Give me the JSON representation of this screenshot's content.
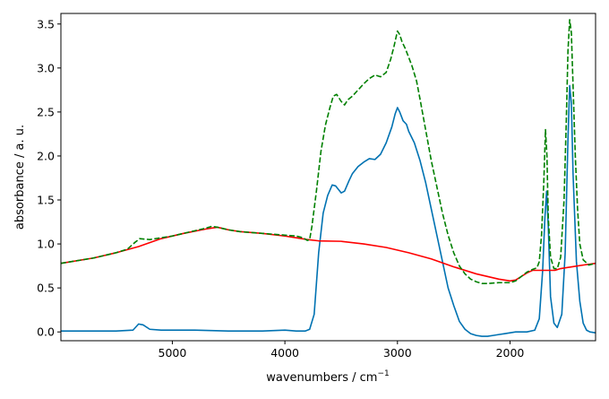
{
  "chart_data": {
    "type": "line",
    "title": "",
    "xlabel": "wavenumbers / cm",
    "xlabel_superscript": "−1",
    "ylabel": "absorbance / a. u.",
    "xlim": [
      5990,
      1240
    ],
    "x_reversed": true,
    "ylim": [
      -0.1,
      3.62
    ],
    "grid": false,
    "legend": "none",
    "x_ticks": [
      5000,
      4000,
      3000,
      2000
    ],
    "x_tick_labels": [
      "5000",
      "4000",
      "3000",
      "2000"
    ],
    "y_ticks": [
      0.0,
      0.5,
      1.0,
      1.5,
      2.0,
      2.5,
      3.0,
      3.5
    ],
    "y_tick_labels": [
      "0.0",
      "0.5",
      "1.0",
      "1.5",
      "2.0",
      "2.5",
      "3.0",
      "3.5"
    ],
    "series": [
      {
        "color": "#0072b2",
        "dash": "solid",
        "points": [
          [
            5990,
            0.01
          ],
          [
            5500,
            0.01
          ],
          [
            5350,
            0.02
          ],
          [
            5300,
            0.09
          ],
          [
            5260,
            0.08
          ],
          [
            5200,
            0.03
          ],
          [
            5100,
            0.02
          ],
          [
            4800,
            0.02
          ],
          [
            4500,
            0.01
          ],
          [
            4200,
            0.01
          ],
          [
            4000,
            0.02
          ],
          [
            3900,
            0.01
          ],
          [
            3820,
            0.01
          ],
          [
            3780,
            0.03
          ],
          [
            3740,
            0.2
          ],
          [
            3700,
            0.9
          ],
          [
            3660,
            1.35
          ],
          [
            3620,
            1.55
          ],
          [
            3580,
            1.67
          ],
          [
            3550,
            1.66
          ],
          [
            3500,
            1.58
          ],
          [
            3470,
            1.6
          ],
          [
            3430,
            1.72
          ],
          [
            3400,
            1.8
          ],
          [
            3350,
            1.88
          ],
          [
            3300,
            1.93
          ],
          [
            3250,
            1.97
          ],
          [
            3200,
            1.96
          ],
          [
            3150,
            2.02
          ],
          [
            3100,
            2.15
          ],
          [
            3050,
            2.33
          ],
          [
            3020,
            2.48
          ],
          [
            3000,
            2.55
          ],
          [
            2980,
            2.5
          ],
          [
            2950,
            2.4
          ],
          [
            2920,
            2.36
          ],
          [
            2900,
            2.28
          ],
          [
            2850,
            2.15
          ],
          [
            2800,
            1.95
          ],
          [
            2750,
            1.7
          ],
          [
            2700,
            1.4
          ],
          [
            2650,
            1.1
          ],
          [
            2600,
            0.8
          ],
          [
            2550,
            0.5
          ],
          [
            2500,
            0.3
          ],
          [
            2450,
            0.12
          ],
          [
            2400,
            0.03
          ],
          [
            2350,
            -0.02
          ],
          [
            2300,
            -0.04
          ],
          [
            2250,
            -0.05
          ],
          [
            2200,
            -0.05
          ],
          [
            2150,
            -0.04
          ],
          [
            2100,
            -0.03
          ],
          [
            2050,
            -0.02
          ],
          [
            2000,
            -0.01
          ],
          [
            1950,
            0.0
          ],
          [
            1850,
            0.0
          ],
          [
            1780,
            0.02
          ],
          [
            1740,
            0.15
          ],
          [
            1710,
            0.7
          ],
          [
            1690,
            1.3
          ],
          [
            1675,
            1.6
          ],
          [
            1660,
            1.2
          ],
          [
            1640,
            0.4
          ],
          [
            1610,
            0.1
          ],
          [
            1580,
            0.05
          ],
          [
            1540,
            0.2
          ],
          [
            1510,
            0.9
          ],
          [
            1485,
            2.2
          ],
          [
            1470,
            2.8
          ],
          [
            1455,
            2.6
          ],
          [
            1440,
            1.8
          ],
          [
            1410,
            0.8
          ],
          [
            1380,
            0.35
          ],
          [
            1350,
            0.1
          ],
          [
            1320,
            0.02
          ],
          [
            1290,
            0.0
          ],
          [
            1240,
            -0.01
          ]
        ]
      },
      {
        "color": "#ff0000",
        "dash": "solid",
        "points": [
          [
            5990,
            0.78
          ],
          [
            5700,
            0.84
          ],
          [
            5500,
            0.9
          ],
          [
            5300,
            0.97
          ],
          [
            5100,
            1.06
          ],
          [
            4900,
            1.12
          ],
          [
            4700,
            1.17
          ],
          [
            4600,
            1.19
          ],
          [
            4500,
            1.16
          ],
          [
            4400,
            1.14
          ],
          [
            4200,
            1.12
          ],
          [
            4000,
            1.09
          ],
          [
            3900,
            1.07
          ],
          [
            3800,
            1.05
          ],
          [
            3700,
            1.035
          ],
          [
            3500,
            1.03
          ],
          [
            3300,
            1.0
          ],
          [
            3100,
            0.96
          ],
          [
            2900,
            0.9
          ],
          [
            2700,
            0.83
          ],
          [
            2500,
            0.74
          ],
          [
            2300,
            0.66
          ],
          [
            2100,
            0.6
          ],
          [
            2000,
            0.58
          ],
          [
            1950,
            0.59
          ],
          [
            1900,
            0.63
          ],
          [
            1850,
            0.67
          ],
          [
            1800,
            0.7
          ],
          [
            1700,
            0.7
          ],
          [
            1600,
            0.7
          ],
          [
            1550,
            0.72
          ],
          [
            1450,
            0.74
          ],
          [
            1350,
            0.76
          ],
          [
            1240,
            0.78
          ]
        ]
      },
      {
        "color": "#008000",
        "dash": "dashed",
        "points": [
          [
            5990,
            0.78
          ],
          [
            5700,
            0.84
          ],
          [
            5500,
            0.9
          ],
          [
            5400,
            0.94
          ],
          [
            5330,
            1.02
          ],
          [
            5290,
            1.06
          ],
          [
            5200,
            1.05
          ],
          [
            5100,
            1.07
          ],
          [
            5000,
            1.09
          ],
          [
            4900,
            1.12
          ],
          [
            4800,
            1.15
          ],
          [
            4700,
            1.18
          ],
          [
            4650,
            1.2
          ],
          [
            4600,
            1.19
          ],
          [
            4500,
            1.16
          ],
          [
            4400,
            1.14
          ],
          [
            4200,
            1.12
          ],
          [
            4000,
            1.1
          ],
          [
            3900,
            1.09
          ],
          [
            3840,
            1.07
          ],
          [
            3800,
            1.04
          ],
          [
            3780,
            1.05
          ],
          [
            3760,
            1.2
          ],
          [
            3720,
            1.6
          ],
          [
            3680,
            2.05
          ],
          [
            3640,
            2.35
          ],
          [
            3600,
            2.55
          ],
          [
            3570,
            2.68
          ],
          [
            3540,
            2.7
          ],
          [
            3500,
            2.62
          ],
          [
            3470,
            2.58
          ],
          [
            3440,
            2.64
          ],
          [
            3400,
            2.68
          ],
          [
            3350,
            2.75
          ],
          [
            3300,
            2.82
          ],
          [
            3250,
            2.88
          ],
          [
            3200,
            2.92
          ],
          [
            3150,
            2.9
          ],
          [
            3100,
            2.95
          ],
          [
            3060,
            3.1
          ],
          [
            3030,
            3.25
          ],
          [
            3000,
            3.42
          ],
          [
            2980,
            3.38
          ],
          [
            2960,
            3.3
          ],
          [
            2930,
            3.22
          ],
          [
            2900,
            3.12
          ],
          [
            2870,
            3.02
          ],
          [
            2830,
            2.85
          ],
          [
            2800,
            2.65
          ],
          [
            2750,
            2.3
          ],
          [
            2700,
            1.95
          ],
          [
            2650,
            1.65
          ],
          [
            2600,
            1.35
          ],
          [
            2550,
            1.1
          ],
          [
            2500,
            0.9
          ],
          [
            2450,
            0.75
          ],
          [
            2400,
            0.66
          ],
          [
            2350,
            0.6
          ],
          [
            2300,
            0.57
          ],
          [
            2250,
            0.55
          ],
          [
            2200,
            0.55
          ],
          [
            2100,
            0.56
          ],
          [
            2000,
            0.56
          ],
          [
            1950,
            0.58
          ],
          [
            1900,
            0.63
          ],
          [
            1850,
            0.68
          ],
          [
            1800,
            0.71
          ],
          [
            1760,
            0.73
          ],
          [
            1740,
            0.8
          ],
          [
            1720,
            1.1
          ],
          [
            1700,
            1.7
          ],
          [
            1685,
            2.3
          ],
          [
            1672,
            2.0
          ],
          [
            1660,
            1.3
          ],
          [
            1640,
            0.85
          ],
          [
            1610,
            0.72
          ],
          [
            1580,
            0.72
          ],
          [
            1550,
            0.85
          ],
          [
            1520,
            1.5
          ],
          [
            1500,
            2.4
          ],
          [
            1485,
            3.2
          ],
          [
            1470,
            3.55
          ],
          [
            1455,
            3.4
          ],
          [
            1440,
            2.8
          ],
          [
            1420,
            2.0
          ],
          [
            1400,
            1.4
          ],
          [
            1380,
            1.0
          ],
          [
            1350,
            0.82
          ],
          [
            1300,
            0.76
          ],
          [
            1240,
            0.78
          ]
        ]
      }
    ]
  }
}
